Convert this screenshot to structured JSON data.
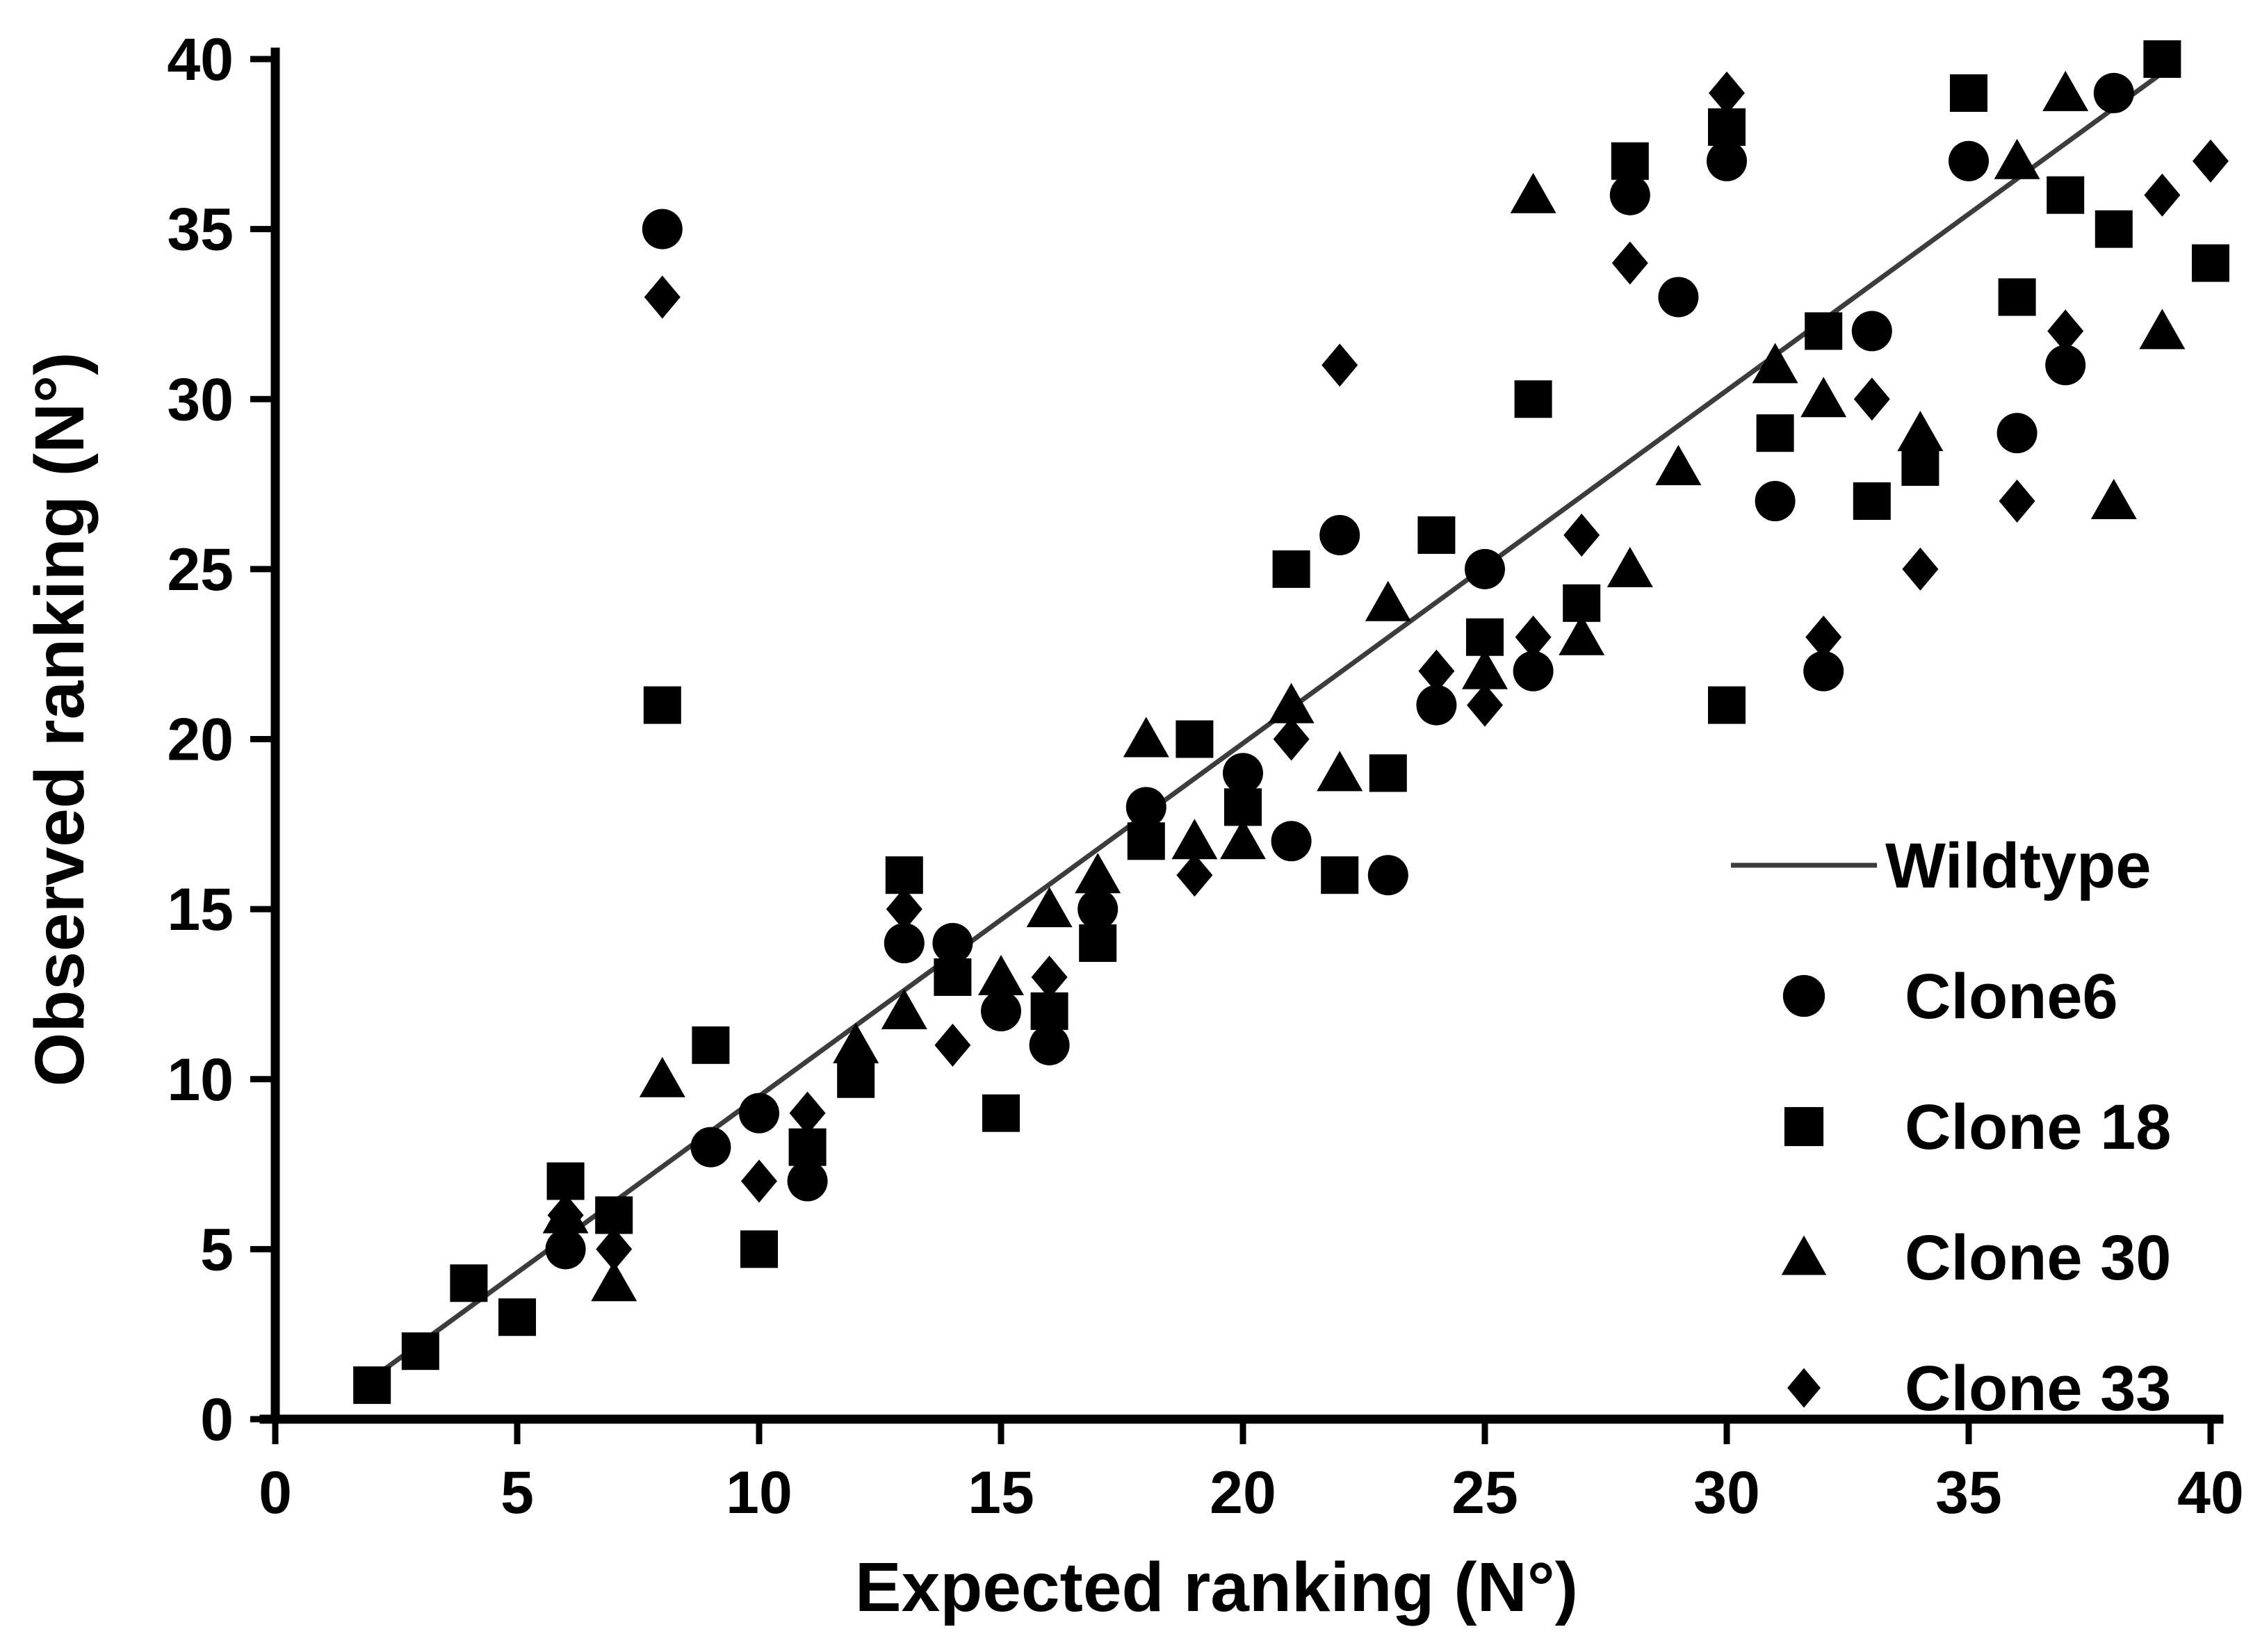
{
  "chart_data": {
    "type": "scatter",
    "title": "",
    "xlabel": "Expected ranking (N°)",
    "ylabel": "Observed ranking (N°)",
    "xlim": [
      0,
      40
    ],
    "ylim": [
      0,
      40
    ],
    "xticks": [
      0,
      5,
      10,
      15,
      20,
      25,
      30,
      35,
      40
    ],
    "yticks": [
      0,
      5,
      10,
      15,
      20,
      25,
      30,
      35,
      40
    ],
    "grid": false,
    "legend_position": "inside-right",
    "line_series": {
      "name": "Wildtype",
      "points": [
        [
          2,
          1.2
        ],
        [
          39.2,
          39.8
        ]
      ]
    },
    "series": [
      {
        "name": "Clone6",
        "marker": "circle",
        "points": [
          [
            6,
            5
          ],
          [
            8,
            35
          ],
          [
            9,
            8
          ],
          [
            10,
            9
          ],
          [
            11,
            7
          ],
          [
            13,
            14
          ],
          [
            14,
            14
          ],
          [
            15,
            12
          ],
          [
            16,
            11
          ],
          [
            17,
            15
          ],
          [
            18,
            18
          ],
          [
            20,
            19
          ],
          [
            21,
            17
          ],
          [
            22,
            26
          ],
          [
            23,
            16
          ],
          [
            24,
            21
          ],
          [
            25,
            25
          ],
          [
            26,
            22
          ],
          [
            28,
            36
          ],
          [
            29,
            33
          ],
          [
            30,
            37
          ],
          [
            31,
            27
          ],
          [
            32,
            22
          ],
          [
            33,
            32
          ],
          [
            35,
            37
          ],
          [
            36,
            29
          ],
          [
            37,
            31
          ],
          [
            38,
            39
          ]
        ]
      },
      {
        "name": "Clone 18",
        "marker": "square",
        "points": [
          [
            2,
            1
          ],
          [
            3,
            2
          ],
          [
            4,
            4
          ],
          [
            5,
            3
          ],
          [
            6,
            7
          ],
          [
            7,
            6
          ],
          [
            8,
            21
          ],
          [
            9,
            11
          ],
          [
            10,
            5
          ],
          [
            11,
            8
          ],
          [
            12,
            10
          ],
          [
            13,
            16
          ],
          [
            14,
            13
          ],
          [
            15,
            9
          ],
          [
            16,
            12
          ],
          [
            17,
            14
          ],
          [
            18,
            17
          ],
          [
            19,
            20
          ],
          [
            20,
            18
          ],
          [
            21,
            25
          ],
          [
            22,
            16
          ],
          [
            23,
            19
          ],
          [
            24,
            26
          ],
          [
            25,
            23
          ],
          [
            26,
            30
          ],
          [
            27,
            24
          ],
          [
            28,
            37
          ],
          [
            30,
            21
          ],
          [
            30,
            38
          ],
          [
            31,
            29
          ],
          [
            32,
            32
          ],
          [
            33,
            27
          ],
          [
            34,
            28
          ],
          [
            35,
            39
          ],
          [
            36,
            33
          ],
          [
            37,
            36
          ],
          [
            38,
            35
          ],
          [
            39,
            40
          ],
          [
            40,
            34
          ]
        ]
      },
      {
        "name": "Clone 30",
        "marker": "triangle",
        "points": [
          [
            6,
            6
          ],
          [
            7,
            4
          ],
          [
            8,
            10
          ],
          [
            12,
            11
          ],
          [
            13,
            12
          ],
          [
            15,
            13
          ],
          [
            16,
            15
          ],
          [
            17,
            16
          ],
          [
            18,
            20
          ],
          [
            19,
            17
          ],
          [
            20,
            17
          ],
          [
            21,
            21
          ],
          [
            22,
            19
          ],
          [
            23,
            24
          ],
          [
            25,
            22
          ],
          [
            26,
            36
          ],
          [
            27,
            23
          ],
          [
            28,
            25
          ],
          [
            29,
            28
          ],
          [
            31,
            31
          ],
          [
            32,
            30
          ],
          [
            34,
            29
          ],
          [
            36,
            37
          ],
          [
            37,
            39
          ],
          [
            38,
            27
          ],
          [
            39,
            32
          ]
        ]
      },
      {
        "name": "Clone 33",
        "marker": "diamond",
        "points": [
          [
            6,
            6
          ],
          [
            7,
            5
          ],
          [
            8,
            33
          ],
          [
            10,
            7
          ],
          [
            11,
            9
          ],
          [
            13,
            15
          ],
          [
            14,
            11
          ],
          [
            16,
            13
          ],
          [
            19,
            16
          ],
          [
            21,
            20
          ],
          [
            22,
            31
          ],
          [
            24,
            22
          ],
          [
            25,
            21
          ],
          [
            26,
            23
          ],
          [
            27,
            26
          ],
          [
            28,
            34
          ],
          [
            30,
            39
          ],
          [
            32,
            23
          ],
          [
            33,
            30
          ],
          [
            34,
            25
          ],
          [
            36,
            27
          ],
          [
            37,
            32
          ],
          [
            39,
            36
          ],
          [
            40,
            37
          ]
        ]
      }
    ]
  },
  "legend": {
    "items": [
      {
        "label": "Wildtype",
        "symbol": "line"
      },
      {
        "label": "Clone6",
        "symbol": "circle"
      },
      {
        "label": "Clone 18",
        "symbol": "square"
      },
      {
        "label": "Clone 30",
        "symbol": "triangle"
      },
      {
        "label": "Clone 33",
        "symbol": "diamond"
      }
    ]
  },
  "colors": {
    "marker": "#000000",
    "line": "#3c3c3c",
    "axis": "#000000",
    "background": "#ffffff"
  }
}
